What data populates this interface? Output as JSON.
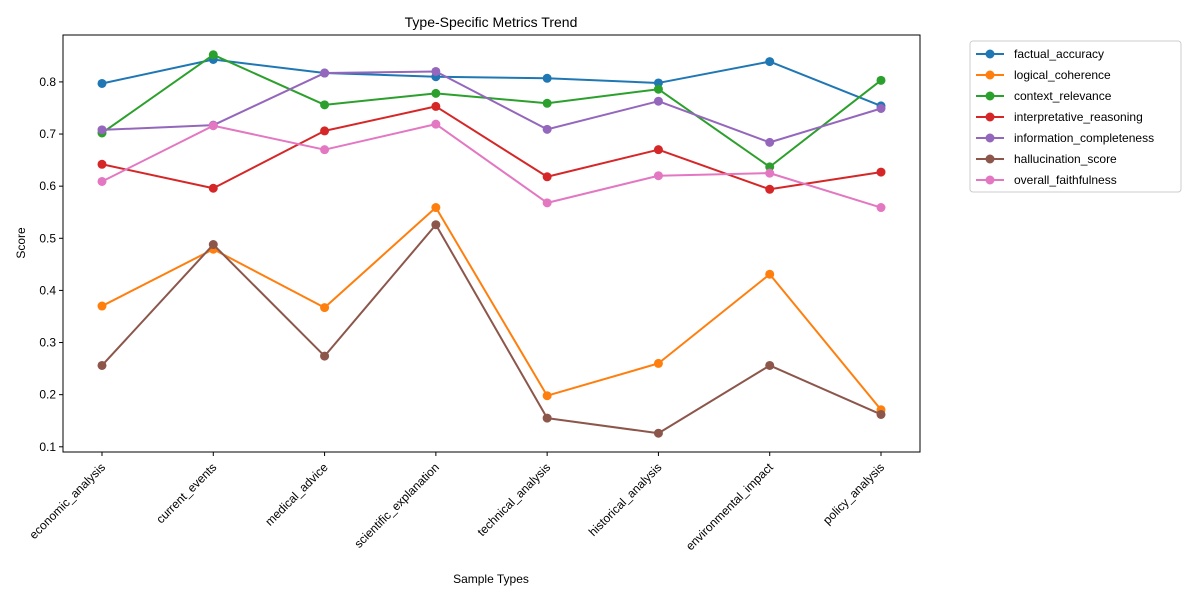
{
  "chart_data": {
    "type": "line",
    "title": "Type-Specific Metrics Trend",
    "xlabel": "Sample Types",
    "ylabel": "Score",
    "categories": [
      "economic_analysis",
      "current_events",
      "medical_advice",
      "scientific_explanation",
      "technical_analysis",
      "historical_analysis",
      "environmental_impact",
      "policy_analysis"
    ],
    "ylim": [
      0.09,
      0.89
    ],
    "yticks": [
      0.1,
      0.2,
      0.3,
      0.4,
      0.5,
      0.6,
      0.7,
      0.8
    ],
    "ytick_labels": [
      "0.1",
      "0.2",
      "0.3",
      "0.4",
      "0.5",
      "0.6",
      "0.7",
      "0.8"
    ],
    "grid": false,
    "legend_position": "outside-upper-right",
    "series": [
      {
        "name": "factual_accuracy",
        "color": "#1f77b4",
        "values": [
          0.797,
          0.843,
          0.817,
          0.81,
          0.807,
          0.798,
          0.839,
          0.754
        ]
      },
      {
        "name": "logical_coherence",
        "color": "#ff7f0e",
        "values": [
          0.37,
          0.479,
          0.367,
          0.559,
          0.198,
          0.26,
          0.431,
          0.171
        ]
      },
      {
        "name": "context_relevance",
        "color": "#2ca02c",
        "values": [
          0.702,
          0.852,
          0.756,
          0.778,
          0.759,
          0.786,
          0.637,
          0.803
        ]
      },
      {
        "name": "interpretative_reasoning",
        "color": "#d62728",
        "values": [
          0.642,
          0.596,
          0.706,
          0.753,
          0.618,
          0.67,
          0.594,
          0.627
        ]
      },
      {
        "name": "information_completeness",
        "color": "#9467bd",
        "values": [
          0.708,
          0.717,
          0.817,
          0.82,
          0.709,
          0.763,
          0.684,
          0.749
        ]
      },
      {
        "name": "hallucination_score",
        "color": "#8c564b",
        "values": [
          0.256,
          0.488,
          0.274,
          0.526,
          0.155,
          0.126,
          0.256,
          0.162
        ]
      },
      {
        "name": "overall_faithfulness",
        "color": "#e377c2",
        "values": [
          0.609,
          0.716,
          0.67,
          0.719,
          0.568,
          0.62,
          0.625,
          0.559
        ]
      }
    ]
  }
}
